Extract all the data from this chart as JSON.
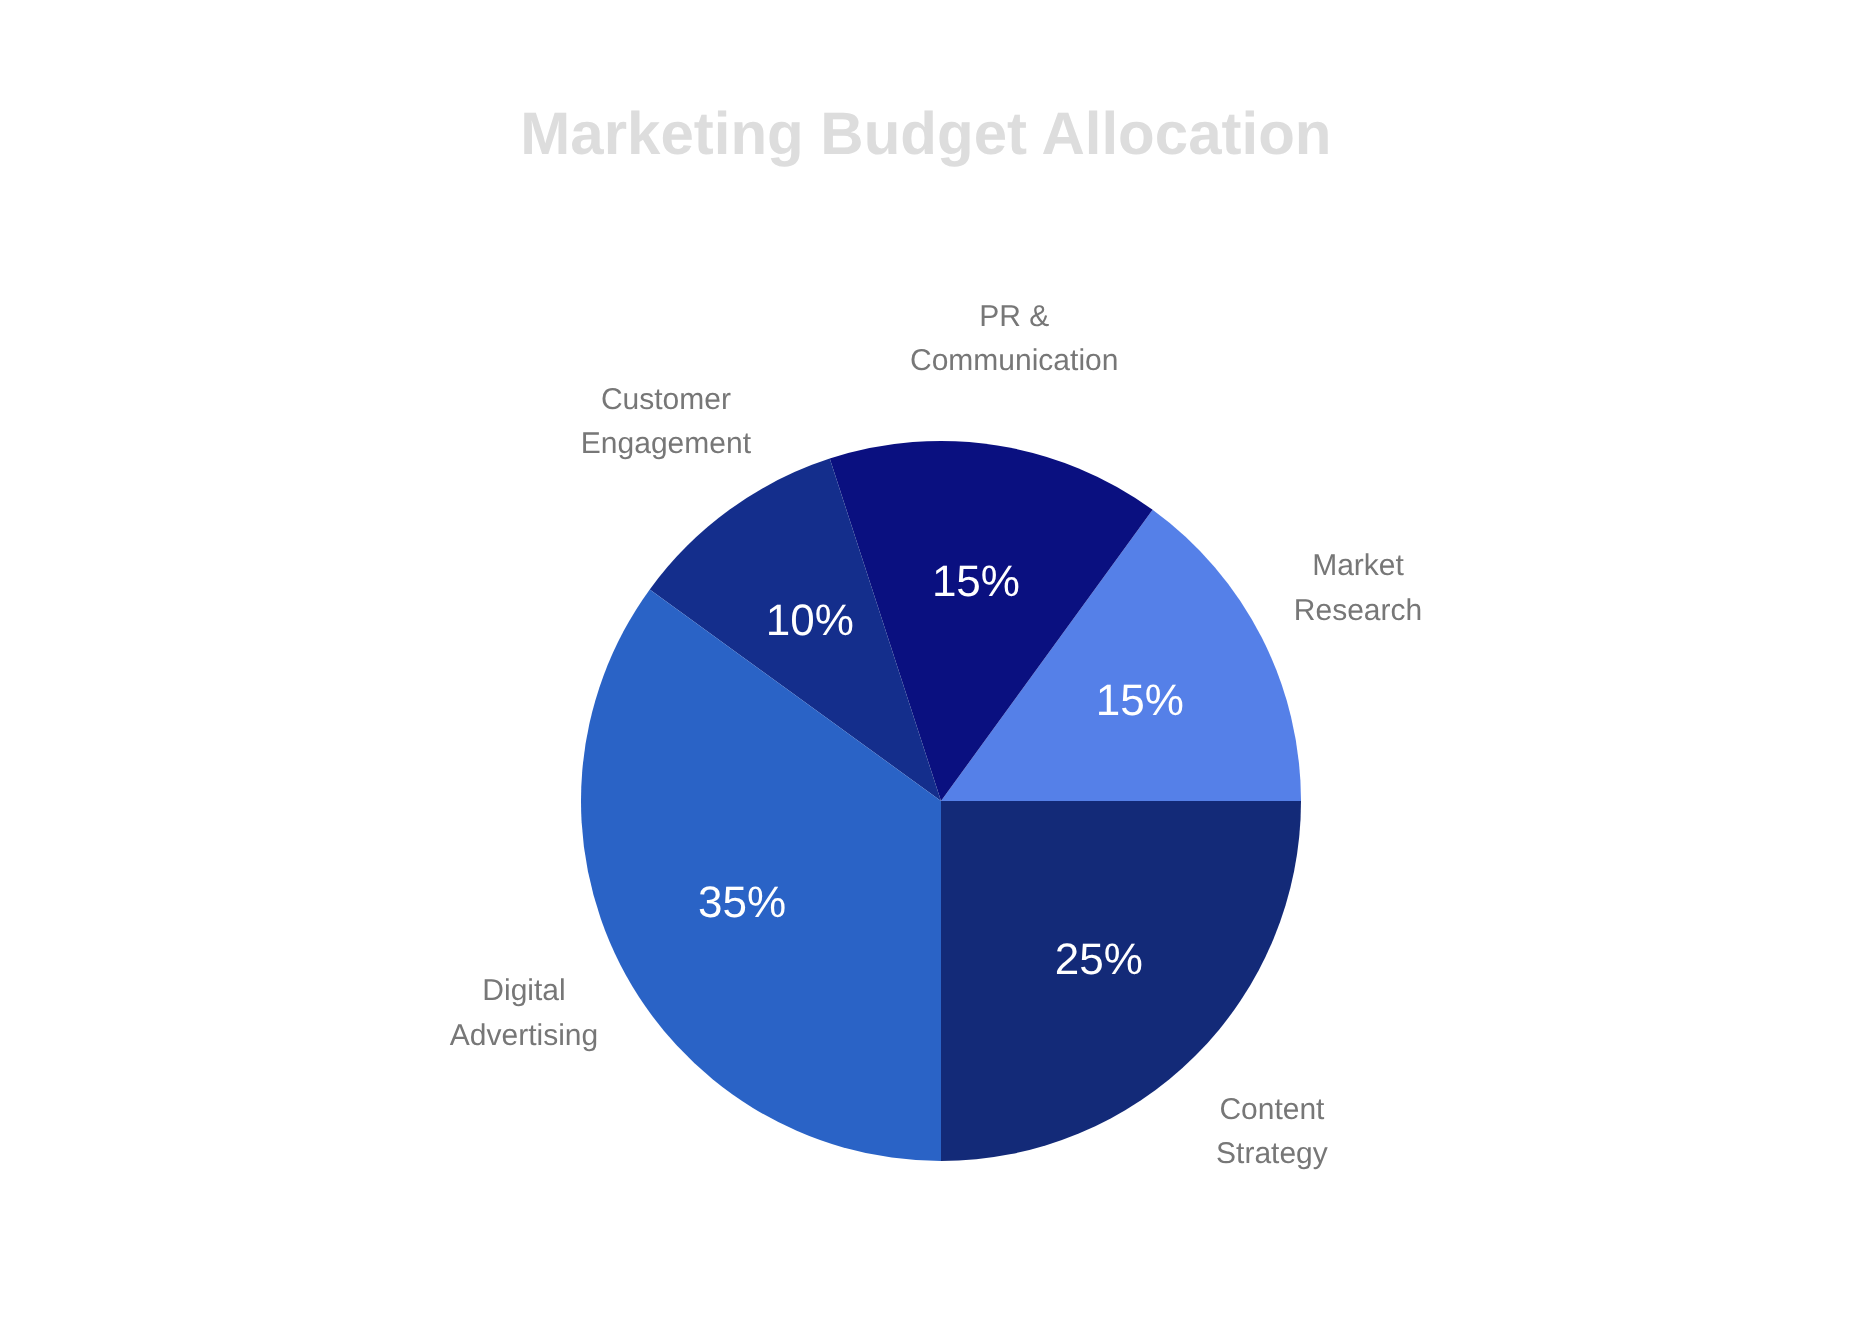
{
  "chart_data": {
    "type": "pie",
    "title": "Marketing Budget Allocation",
    "categories": [
      "Market\nResearch",
      "PR &\nCommunication",
      "Customer\nEngagement",
      "Digital\nAdvertising",
      "Content\nStrategy"
    ],
    "values": [
      15,
      15,
      10,
      35,
      25
    ],
    "colors": [
      "#5580e8",
      "#0a1080",
      "#142e8c",
      "#2a63c6",
      "#132a78"
    ],
    "value_labels": [
      "15%",
      "15%",
      "10%",
      "35%",
      "25%"
    ],
    "legend": false
  }
}
